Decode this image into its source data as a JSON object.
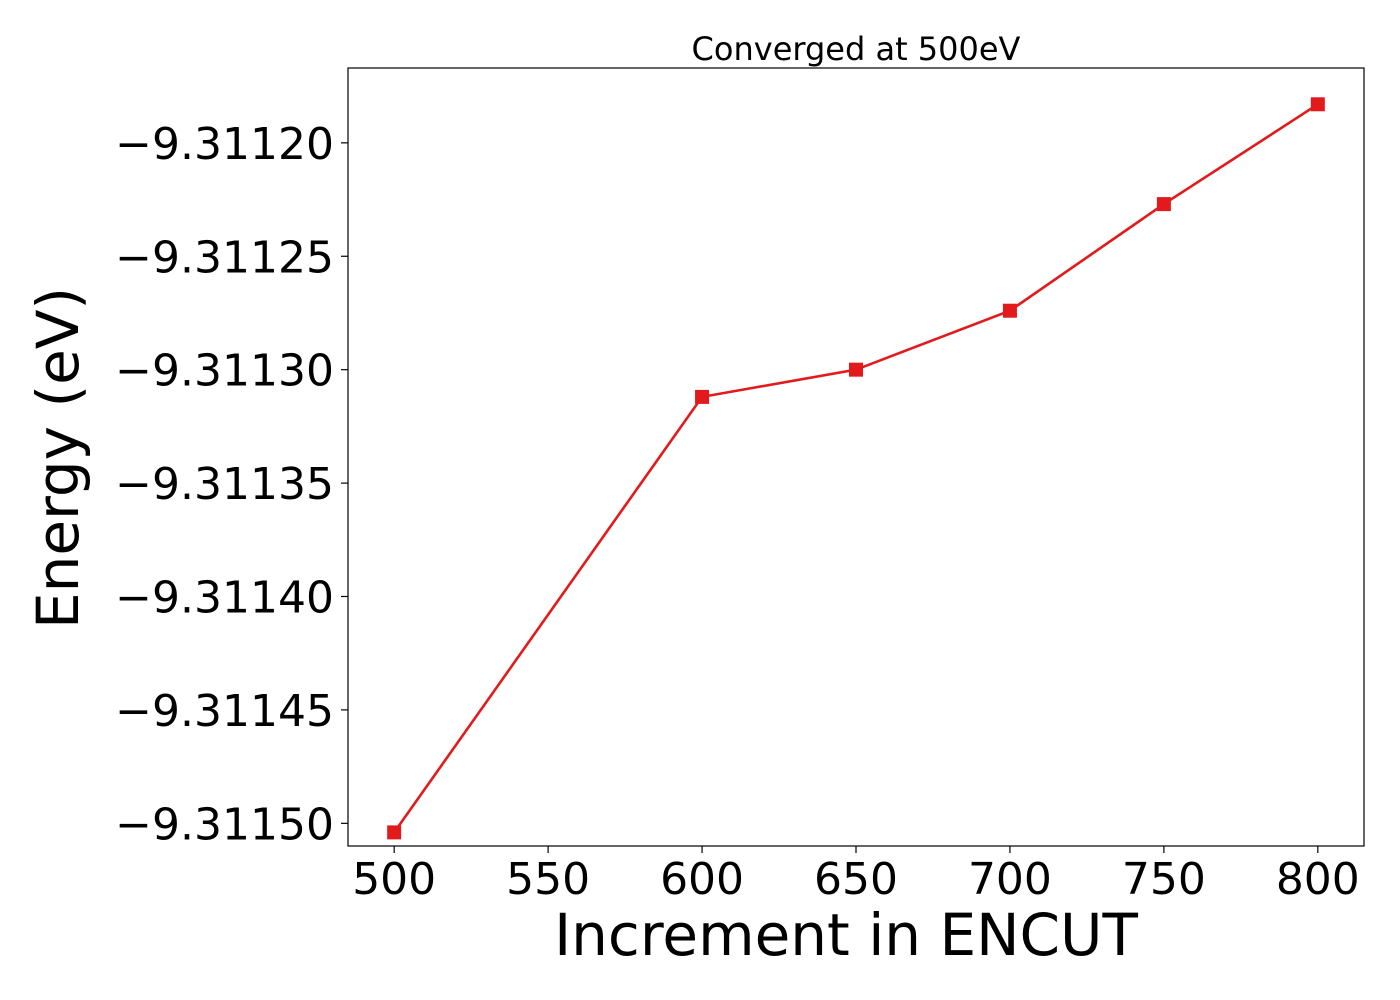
{
  "chart_data": {
    "type": "line",
    "title": "Converged at 500eV",
    "xlabel": "Increment in ENCUT",
    "ylabel": "Energy (eV)",
    "x": [
      500,
      600,
      650,
      700,
      750,
      800
    ],
    "series": [
      {
        "values": [
          -9.311504,
          -9.311312,
          -9.3113,
          -9.311274,
          -9.311227,
          -9.311183
        ],
        "color": "#e31a1c",
        "marker": "square"
      }
    ],
    "xlim": [
      485,
      815
    ],
    "ylim": [
      -9.31151,
      -9.311167
    ],
    "xticks": [
      500,
      550,
      600,
      650,
      700,
      750,
      800
    ],
    "xtick_labels": [
      "500",
      "550",
      "600",
      "650",
      "700",
      "750",
      "800"
    ],
    "yticks": [
      -9.3112,
      -9.31125,
      -9.3113,
      -9.31135,
      -9.3114,
      -9.31145,
      -9.3115
    ],
    "ytick_labels": [
      "−9.31120",
      "−9.31125",
      "−9.31130",
      "−9.31135",
      "−9.31140",
      "−9.31145",
      "−9.31150"
    ],
    "grid": false,
    "legend": false
  }
}
